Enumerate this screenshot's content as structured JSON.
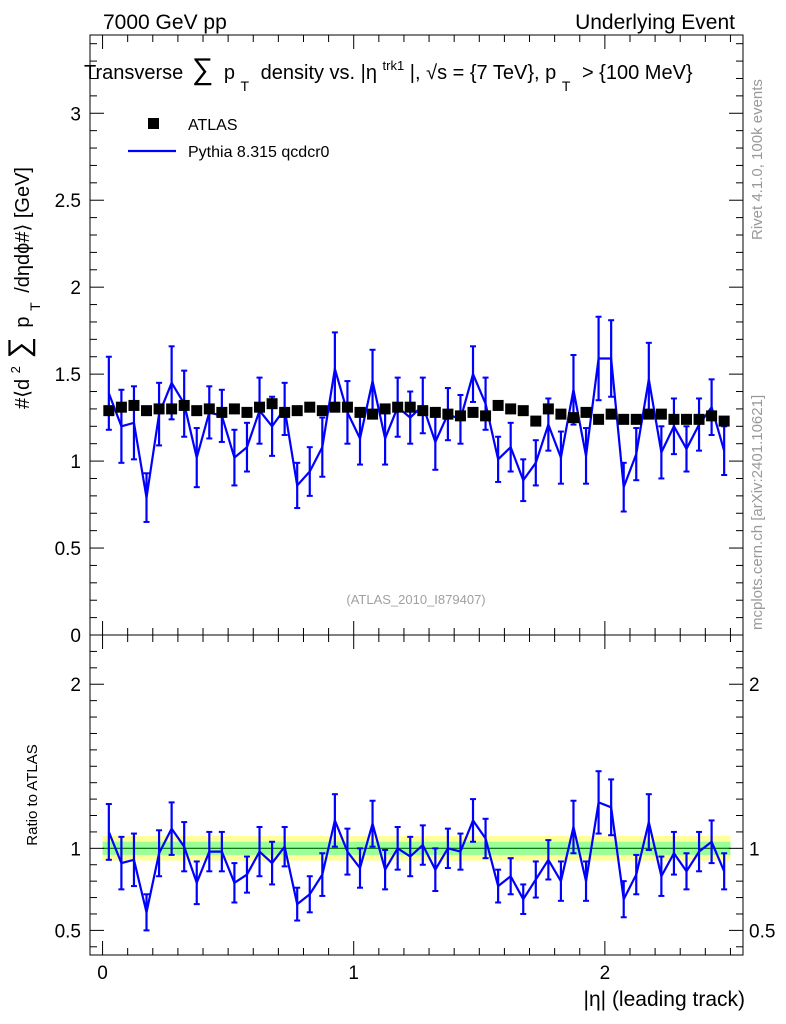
{
  "header": {
    "left": "7000 GeV pp",
    "right": "Underlying Event"
  },
  "side_labels": {
    "rivet": "Rivet 4.1.0,  100k events",
    "mcplots": "mcplots.cern.ch [arXiv:2401.10621]"
  },
  "colors": {
    "data": "#000000",
    "mc": "#0000ff",
    "band_outer": "#ffff99",
    "band_inner": "#99ff99",
    "ref_line": "#006400"
  },
  "chart_data": [
    {
      "type": "scatter",
      "panel": "main",
      "title_parts": {
        "t1": "Transverse",
        "sum": "∑",
        "t2": "p",
        "sub": "T",
        "t3": "density vs. |η",
        "sup": "trk1",
        "t4": "|, √s = {7 TeV}, p",
        "sub2": "T",
        "t5": "> {100 MeV}"
      },
      "ylabel_parts": {
        "a": "#⟨d",
        "sup": "2",
        "sum": "∑",
        "p": "p",
        "sub": "T",
        "b": "/dηdϕ#⟩ [GeV]"
      },
      "ylim": [
        0,
        3.45
      ],
      "xlim": [
        -0.05,
        2.55
      ],
      "yticks": [
        "0",
        "0.5",
        "1",
        "1.5",
        "2",
        "2.5",
        "3"
      ],
      "ytick_values": [
        0,
        0.5,
        1,
        1.5,
        2,
        2.5,
        3
      ],
      "watermark": "(ATLAS_2010_I879407)",
      "legend": [
        {
          "name": "ATLAS",
          "style": "marker"
        },
        {
          "name": "Pythia 8.315 qcdcr0",
          "style": "line"
        }
      ],
      "x": [
        0.025,
        0.075,
        0.125,
        0.175,
        0.225,
        0.275,
        0.325,
        0.375,
        0.425,
        0.475,
        0.525,
        0.575,
        0.625,
        0.675,
        0.725,
        0.775,
        0.825,
        0.875,
        0.925,
        0.975,
        1.025,
        1.075,
        1.125,
        1.175,
        1.225,
        1.275,
        1.325,
        1.375,
        1.425,
        1.475,
        1.525,
        1.575,
        1.625,
        1.675,
        1.725,
        1.775,
        1.825,
        1.875,
        1.925,
        1.975,
        2.025,
        2.075,
        2.125,
        2.175,
        2.225,
        2.275,
        2.325,
        2.375,
        2.425,
        2.475
      ],
      "series": [
        {
          "name": "ATLAS",
          "values": [
            1.29,
            1.31,
            1.32,
            1.29,
            1.3,
            1.3,
            1.32,
            1.29,
            1.3,
            1.28,
            1.3,
            1.28,
            1.31,
            1.33,
            1.28,
            1.29,
            1.31,
            1.29,
            1.31,
            1.31,
            1.28,
            1.27,
            1.3,
            1.31,
            1.31,
            1.29,
            1.28,
            1.27,
            1.26,
            1.28,
            1.26,
            1.32,
            1.3,
            1.29,
            1.23,
            1.3,
            1.27,
            1.25,
            1.28,
            1.24,
            1.27,
            1.24,
            1.24,
            1.27,
            1.27,
            1.24,
            1.24,
            1.24,
            1.26,
            1.23
          ]
        },
        {
          "name": "Pythia 8.315 qcdcr0",
          "values": [
            1.39,
            1.2,
            1.22,
            0.79,
            1.27,
            1.45,
            1.33,
            1.02,
            1.28,
            1.26,
            1.02,
            1.08,
            1.29,
            1.2,
            1.3,
            0.86,
            0.94,
            1.08,
            1.53,
            1.28,
            1.13,
            1.46,
            1.13,
            1.31,
            1.25,
            1.32,
            1.11,
            1.27,
            1.24,
            1.5,
            1.33,
            1.01,
            1.08,
            0.89,
            0.99,
            1.21,
            1.02,
            1.41,
            1.03,
            1.59,
            1.59,
            0.85,
            1.04,
            1.47,
            1.05,
            1.2,
            1.07,
            1.21,
            1.31,
            1.06
          ]
        }
      ],
      "mc_errors": [
        0.21,
        0.21,
        0.21,
        0.14,
        0.18,
        0.21,
        0.19,
        0.17,
        0.15,
        0.15,
        0.16,
        0.14,
        0.19,
        0.17,
        0.15,
        0.13,
        0.14,
        0.17,
        0.21,
        0.18,
        0.15,
        0.18,
        0.15,
        0.17,
        0.15,
        0.16,
        0.16,
        0.15,
        0.14,
        0.16,
        0.15,
        0.13,
        0.14,
        0.12,
        0.13,
        0.15,
        0.15,
        0.2,
        0.16,
        0.24,
        0.22,
        0.14,
        0.15,
        0.21,
        0.15,
        0.16,
        0.13,
        0.15,
        0.16,
        0.14
      ]
    },
    {
      "type": "line",
      "panel": "ratio",
      "ylabel": "Ratio to ATLAS",
      "xlabel": "|η| (leading track)",
      "ylim": [
        0.35,
        2.3
      ],
      "xlim": [
        -0.05,
        2.55
      ],
      "yticks": [
        "0.5",
        "1",
        "2"
      ],
      "ytick_values": [
        0.5,
        1,
        2
      ],
      "xticks": [
        "0",
        "1",
        "2"
      ],
      "xtick_values": [
        0,
        1,
        2
      ],
      "band_outer": 0.075,
      "band_inner": 0.04,
      "series": [
        {
          "name": "Pythia 8.315 qcdcr0 / ATLAS",
          "values": [
            1.1,
            0.91,
            0.93,
            0.61,
            0.97,
            1.12,
            1.01,
            0.79,
            0.98,
            0.98,
            0.79,
            0.84,
            0.98,
            0.91,
            1.01,
            0.66,
            0.72,
            0.84,
            1.17,
            0.98,
            0.88,
            1.15,
            0.87,
            1.0,
            0.95,
            1.02,
            0.87,
            1.0,
            0.98,
            1.17,
            1.06,
            0.77,
            0.83,
            0.69,
            0.81,
            0.93,
            0.8,
            1.13,
            0.8,
            1.28,
            1.25,
            0.69,
            0.84,
            1.16,
            0.83,
            0.97,
            0.86,
            0.98,
            1.04,
            0.86
          ]
        }
      ],
      "errors": [
        0.17,
        0.16,
        0.16,
        0.11,
        0.14,
        0.16,
        0.15,
        0.13,
        0.12,
        0.12,
        0.12,
        0.11,
        0.15,
        0.13,
        0.12,
        0.1,
        0.11,
        0.13,
        0.16,
        0.14,
        0.12,
        0.14,
        0.12,
        0.13,
        0.12,
        0.12,
        0.13,
        0.12,
        0.11,
        0.13,
        0.12,
        0.1,
        0.11,
        0.09,
        0.11,
        0.12,
        0.12,
        0.16,
        0.12,
        0.19,
        0.17,
        0.11,
        0.12,
        0.17,
        0.12,
        0.13,
        0.11,
        0.12,
        0.13,
        0.11
      ]
    }
  ]
}
